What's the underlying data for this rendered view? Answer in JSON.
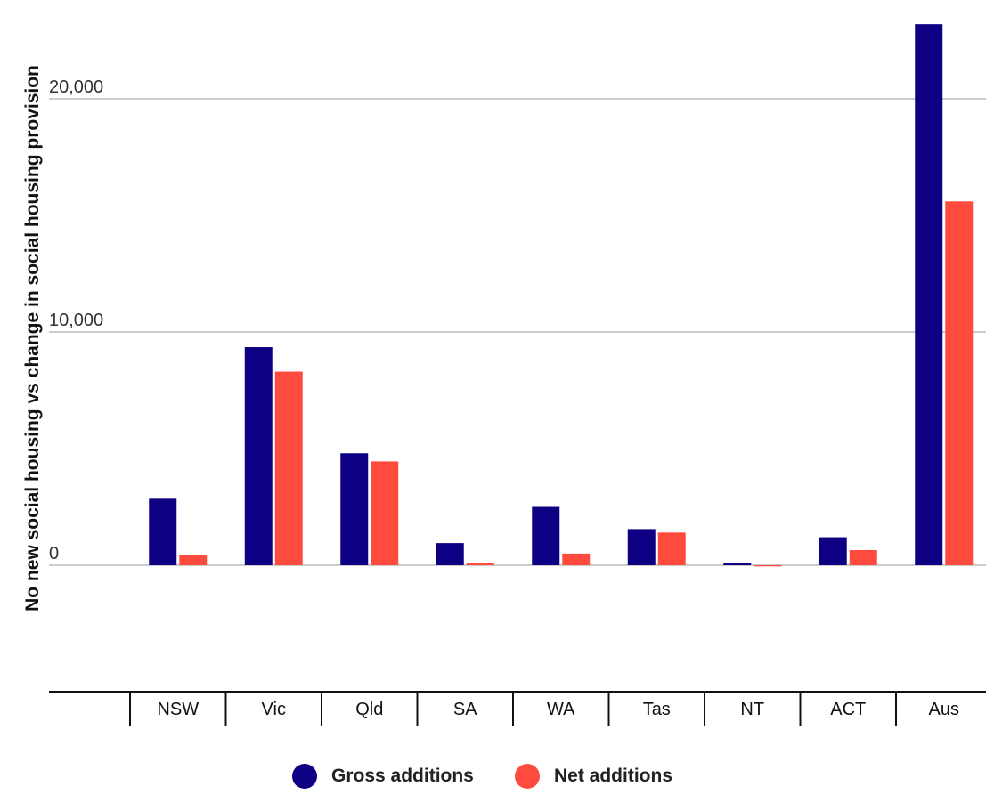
{
  "chart_data": {
    "type": "bar",
    "title": "",
    "xlabel": "",
    "ylabel": "No new social housing vs change in social housing provision",
    "categories": [
      "NSW",
      "Vic",
      "Qld",
      "SA",
      "WA",
      "Tas",
      "NT",
      "ACT",
      "Aus"
    ],
    "series": [
      {
        "name": "Gross additions",
        "color": "#0d0082",
        "values": [
          2850,
          9350,
          4800,
          950,
          2500,
          1550,
          100,
          1200,
          23200
        ]
      },
      {
        "name": "Net additions",
        "color": "#ff4b3e",
        "values": [
          450,
          8300,
          4450,
          100,
          500,
          1400,
          -50,
          650,
          15600
        ]
      }
    ],
    "y_ticks": [
      {
        "value": 0,
        "label": "0"
      },
      {
        "value": 10000,
        "label": "10,000"
      },
      {
        "value": 20000,
        "label": "20,000"
      }
    ],
    "ylim": [
      -5300,
      23500
    ],
    "grid": true,
    "legend_position": "bottom-center"
  }
}
